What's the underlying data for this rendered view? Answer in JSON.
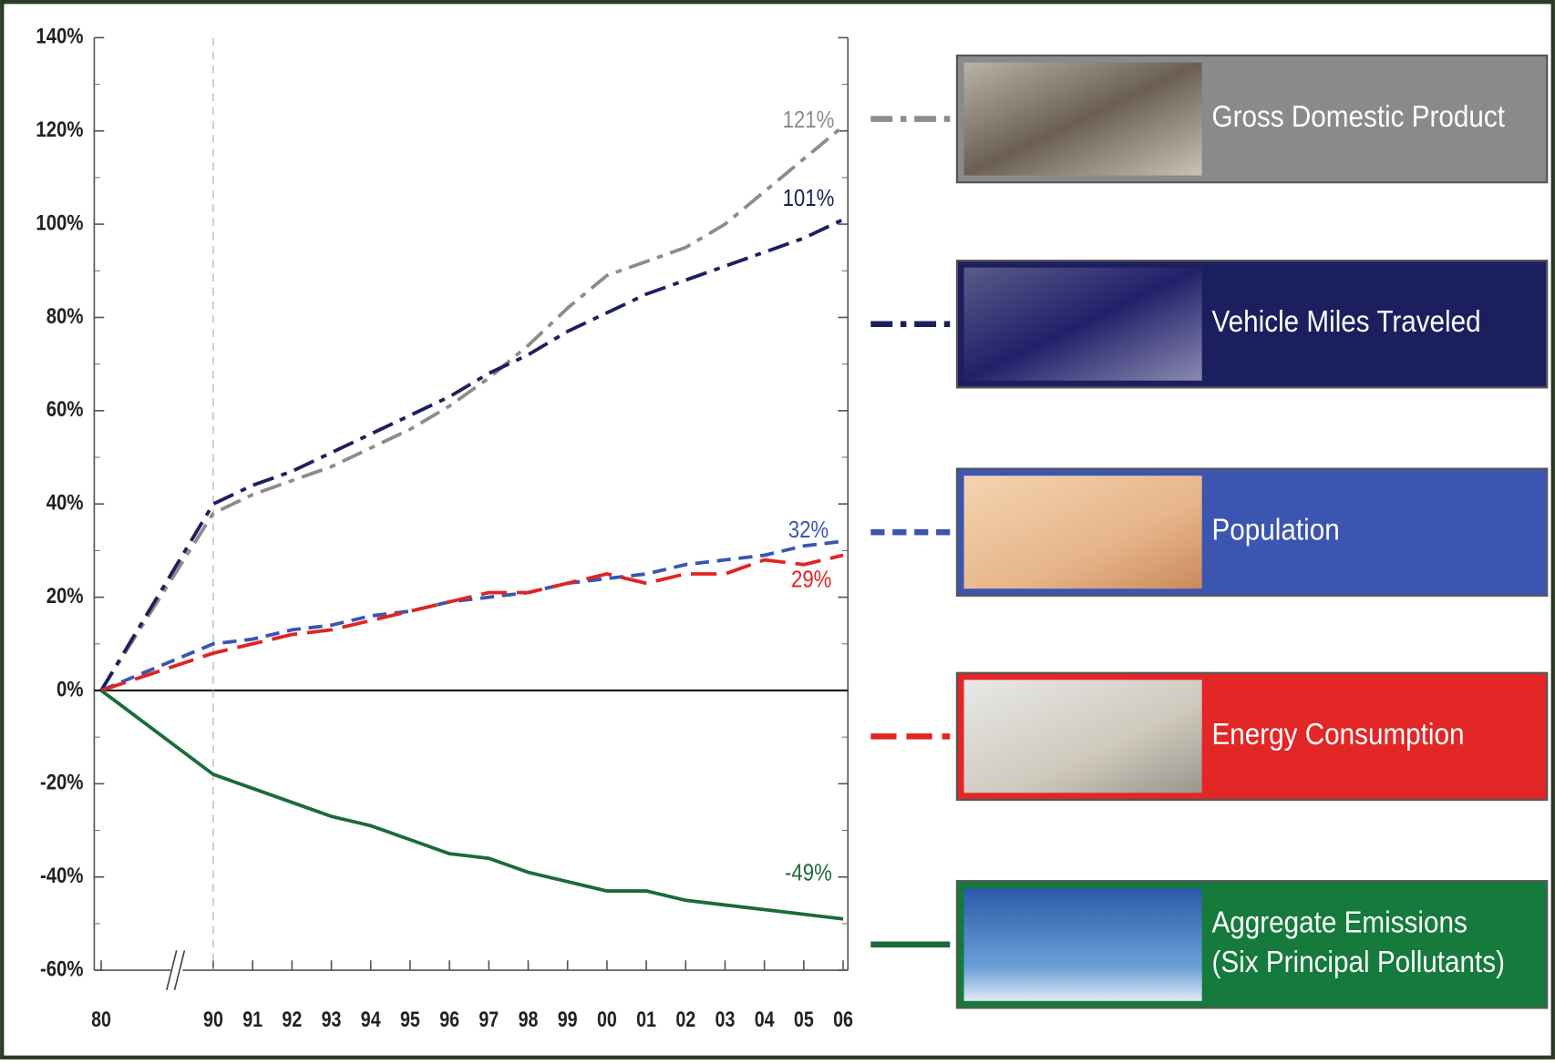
{
  "chart_data": {
    "type": "line",
    "categories": [
      "80",
      "90",
      "91",
      "92",
      "93",
      "94",
      "95",
      "96",
      "97",
      "98",
      "99",
      "00",
      "01",
      "02",
      "03",
      "04",
      "05",
      "06"
    ],
    "ylim": [
      -60,
      140
    ],
    "yticks": [
      {
        "value": -60,
        "label": "-60%"
      },
      {
        "value": -40,
        "label": "-40%"
      },
      {
        "value": -20,
        "label": "-20%"
      },
      {
        "value": 0,
        "label": "0%"
      },
      {
        "value": 20,
        "label": "20%"
      },
      {
        "value": 40,
        "label": "40%"
      },
      {
        "value": 60,
        "label": "60%"
      },
      {
        "value": 80,
        "label": "80%"
      },
      {
        "value": 100,
        "label": "100%"
      },
      {
        "value": 120,
        "label": "120%"
      },
      {
        "value": 140,
        "label": "140%"
      }
    ],
    "series": [
      {
        "name": "Gross Domestic Product",
        "color": "#8c8c8c",
        "end_label": "121%",
        "values": [
          0,
          38,
          42,
          45,
          48,
          52,
          56,
          61,
          67,
          74,
          82,
          89,
          92,
          95,
          100,
          107,
          114,
          121
        ]
      },
      {
        "name": "Vehicle Miles Traveled",
        "color": "#1c1f5e",
        "end_label": "101%",
        "values": [
          0,
          40,
          44,
          47,
          51,
          55,
          59,
          63,
          68,
          72,
          77,
          81,
          85,
          88,
          91,
          94,
          97,
          101
        ]
      },
      {
        "name": "Population",
        "color": "#3b55b0",
        "end_label": "32%",
        "values": [
          0,
          10,
          11,
          13,
          14,
          16,
          17,
          19,
          20,
          21,
          23,
          24,
          25,
          27,
          28,
          29,
          31,
          32
        ]
      },
      {
        "name": "Energy Consumption",
        "color": "#e02424",
        "end_label": "29%",
        "values": [
          0,
          8,
          10,
          12,
          13,
          15,
          17,
          19,
          21,
          21,
          23,
          25,
          23,
          25,
          25,
          28,
          27,
          29
        ]
      },
      {
        "name": "Aggregate Emissions\n(Six Principal Pollutants)",
        "color": "#1a6b3a",
        "end_label": "-49%",
        "values": [
          0,
          -18,
          -21,
          -24,
          -27,
          -29,
          -32,
          -35,
          -36,
          -39,
          -41,
          -43,
          -43,
          -45,
          -46,
          -47,
          -48,
          -49
        ]
      }
    ]
  }
}
